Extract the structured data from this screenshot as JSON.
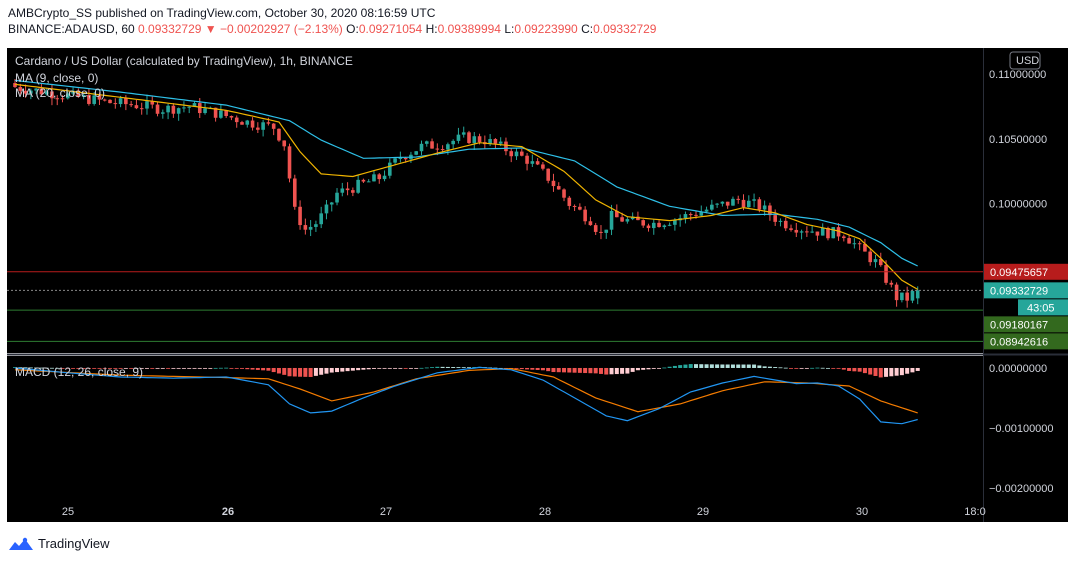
{
  "header": {
    "line1": "AMBCrypto_SS published on TradingView.com, October 30, 2020 08:16:59 UTC",
    "symbol": "BINANCE:ADAUSD, 60",
    "price": "0.09332729",
    "change": "−0.00202927 (−2.13%)",
    "o_label": "O:",
    "o": "0.09271054",
    "h_label": "H:",
    "h": "0.09389994",
    "l_label": "L:",
    "l": "0.09223990",
    "c_label": "C:",
    "c": "0.09332729"
  },
  "brand": "TradingView",
  "colors": {
    "bg": "#000000",
    "up": "#26a69a",
    "down": "#ef5350",
    "ma9": "#f0b400",
    "ma20": "#2ec0e8",
    "macd": "#2196f3",
    "signal": "#f57c00",
    "hist_up_strong": "#26a69a",
    "hist_up_weak": "#b2dfdb",
    "hist_dn_strong": "#ef5350",
    "hist_dn_weak": "#ffcdd2"
  },
  "chart_data": [
    {
      "type": "candlestick",
      "title": "Cardano / US Dollar (calculated by TradingView), 1h, BINANCE",
      "legend": [
        "MA (9, close, 0)",
        "MA (20, close, 0)"
      ],
      "currency_label": "USD",
      "ylim": [
        0.0885,
        0.112
      ],
      "y_ticks": [
        0.11,
        0.105,
        0.1
      ],
      "y_tick_labels": [
        "0.11000000",
        "0.10500000",
        "0.10000000"
      ],
      "x_ticks": [
        "25",
        "26",
        "27",
        "28",
        "29",
        "30",
        "18:0"
      ],
      "price_lines": [
        {
          "label": "0.09475657",
          "value": 0.09475657,
          "color": "#b71c1c",
          "badge": "#b71c1c"
        },
        {
          "label": "0.09332729",
          "value": 0.09332729,
          "color": "#888888",
          "badge": "#26a69a",
          "countdown": "43:05"
        },
        {
          "label": "0.09180167",
          "value": 0.0918,
          "color": "#2e7d32",
          "badge": "#33691e"
        },
        {
          "label": "0.08942616",
          "value": 0.0894,
          "color": "#2e7d32",
          "badge": "#33691e"
        }
      ],
      "close_path": [
        [
          0,
          0.109
        ],
        [
          6,
          0.1086
        ],
        [
          12,
          0.1082
        ],
        [
          18,
          0.1078
        ],
        [
          23,
          0.1076
        ],
        [
          28,
          0.1073
        ],
        [
          33,
          0.1075
        ],
        [
          38,
          0.107
        ],
        [
          44,
          0.1063
        ],
        [
          49,
          0.1059
        ],
        [
          51,
          0.1046
        ],
        [
          53,
          0.0994
        ],
        [
          55,
          0.098
        ],
        [
          57,
          0.0985
        ],
        [
          59,
          0.0995
        ],
        [
          61,
          0.1008
        ],
        [
          65,
          0.1014
        ],
        [
          69,
          0.102
        ],
        [
          73,
          0.1036
        ],
        [
          77,
          0.1044
        ],
        [
          81,
          0.1046
        ],
        [
          85,
          0.1051
        ],
        [
          89,
          0.1049
        ],
        [
          93,
          0.1042
        ],
        [
          97,
          0.1034
        ],
        [
          101,
          0.102
        ],
        [
          105,
          0.1
        ],
        [
          109,
          0.0988
        ],
        [
          111,
          0.0976
        ],
        [
          113,
          0.099
        ],
        [
          117,
          0.0986
        ],
        [
          121,
          0.0985
        ],
        [
          125,
          0.0988
        ],
        [
          129,
          0.0993
        ],
        [
          133,
          0.0998
        ],
        [
          137,
          0.1003
        ],
        [
          141,
          0.0998
        ],
        [
          145,
          0.0986
        ],
        [
          149,
          0.0981
        ],
        [
          153,
          0.0978
        ],
        [
          157,
          0.0977
        ],
        [
          160,
          0.0965
        ],
        [
          163,
          0.0955
        ],
        [
          165,
          0.0942
        ],
        [
          167,
          0.0928
        ],
        [
          169,
          0.0927
        ],
        [
          171,
          0.0934
        ]
      ],
      "ma9": [
        [
          0,
          0.1092
        ],
        [
          20,
          0.1082
        ],
        [
          40,
          0.1072
        ],
        [
          50,
          0.1063
        ],
        [
          54,
          0.104
        ],
        [
          58,
          0.1023
        ],
        [
          64,
          0.1021
        ],
        [
          72,
          0.103
        ],
        [
          80,
          0.1039
        ],
        [
          88,
          0.1047
        ],
        [
          96,
          0.1044
        ],
        [
          104,
          0.1025
        ],
        [
          110,
          0.1003
        ],
        [
          116,
          0.099
        ],
        [
          124,
          0.0987
        ],
        [
          132,
          0.0991
        ],
        [
          138,
          0.0997
        ],
        [
          144,
          0.0993
        ],
        [
          150,
          0.0984
        ],
        [
          156,
          0.0979
        ],
        [
          160,
          0.0973
        ],
        [
          164,
          0.0958
        ],
        [
          168,
          0.0941
        ],
        [
          171,
          0.0934
        ]
      ],
      "ma20": [
        [
          0,
          0.1095
        ],
        [
          20,
          0.1086
        ],
        [
          40,
          0.1076
        ],
        [
          52,
          0.1064
        ],
        [
          58,
          0.1049
        ],
        [
          66,
          0.1035
        ],
        [
          76,
          0.1036
        ],
        [
          86,
          0.1042
        ],
        [
          96,
          0.1043
        ],
        [
          106,
          0.1033
        ],
        [
          114,
          0.1013
        ],
        [
          124,
          0.0998
        ],
        [
          134,
          0.0991
        ],
        [
          144,
          0.0992
        ],
        [
          152,
          0.0988
        ],
        [
          158,
          0.0982
        ],
        [
          164,
          0.097
        ],
        [
          168,
          0.0958
        ],
        [
          171,
          0.0952
        ]
      ]
    },
    {
      "type": "macd",
      "title": "MACD (12, 26, close, 9)",
      "ylim": [
        -0.00212,
        0.0002
      ],
      "y_ticks": [
        0.0,
        -0.001,
        -0.002
      ],
      "y_tick_labels": [
        "0.00000000",
        "−0.00100000",
        "−0.00200000"
      ],
      "macd_path": [
        [
          0,
          0.0
        ],
        [
          10,
          -8e-05
        ],
        [
          20,
          -0.00015
        ],
        [
          30,
          -0.00017
        ],
        [
          40,
          -0.00015
        ],
        [
          48,
          -0.00028
        ],
        [
          52,
          -0.0006
        ],
        [
          56,
          -0.00075
        ],
        [
          60,
          -0.00072
        ],
        [
          66,
          -0.0005
        ],
        [
          72,
          -0.0003
        ],
        [
          80,
          -8e-05
        ],
        [
          88,
          1e-05
        ],
        [
          94,
          -3e-05
        ],
        [
          100,
          -0.0002
        ],
        [
          106,
          -0.0005
        ],
        [
          112,
          -0.0008
        ],
        [
          116,
          -0.00088
        ],
        [
          122,
          -0.00068
        ],
        [
          128,
          -0.0004
        ],
        [
          134,
          -0.00025
        ],
        [
          140,
          -0.00014
        ],
        [
          144,
          -0.0002
        ],
        [
          148,
          -0.00026
        ],
        [
          152,
          -0.00025
        ],
        [
          156,
          -0.0003
        ],
        [
          160,
          -0.00052
        ],
        [
          164,
          -0.0009
        ],
        [
          168,
          -0.00093
        ],
        [
          171,
          -0.00086
        ]
      ],
      "signal_path": [
        [
          0,
          -3e-05
        ],
        [
          20,
          -0.00012
        ],
        [
          40,
          -0.00016
        ],
        [
          48,
          -0.00018
        ],
        [
          54,
          -0.00035
        ],
        [
          60,
          -0.00055
        ],
        [
          68,
          -0.0004
        ],
        [
          76,
          -0.00018
        ],
        [
          86,
          -4e-05
        ],
        [
          94,
          -1e-05
        ],
        [
          102,
          -0.00015
        ],
        [
          110,
          -0.0005
        ],
        [
          118,
          -0.00073
        ],
        [
          126,
          -0.0006
        ],
        [
          134,
          -0.00038
        ],
        [
          142,
          -0.00023
        ],
        [
          150,
          -0.00025
        ],
        [
          158,
          -0.0003
        ],
        [
          164,
          -0.00055
        ],
        [
          171,
          -0.00075
        ]
      ]
    }
  ]
}
